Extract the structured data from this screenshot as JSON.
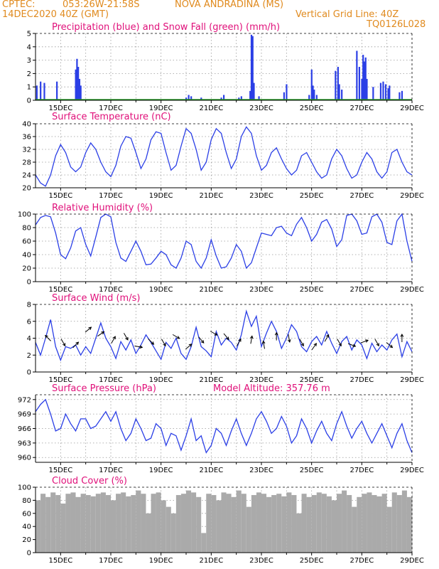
{
  "header": {
    "line1_left": "CPTEC:",
    "line1_coords": "053:26W-21:58S",
    "line1_city": "NOVA ANDRADINA (MS)",
    "line2_date": "14DEC2020 40Z (GMT)",
    "line2_grid": "Vertical Grid Line: 40Z",
    "line3_code": "TQ0126L028",
    "accent_orange": "#e08a1e",
    "accent_magenta": "#e0107a"
  },
  "x_axis": {
    "day_start": 14,
    "day_end": 29,
    "tick_labels": [
      "15DEC",
      "17DEC",
      "19DEC",
      "21DEC",
      "23DEC",
      "25DEC",
      "27DEC",
      "29DEC"
    ],
    "tick_days": [
      15,
      17,
      19,
      21,
      23,
      25,
      27,
      29
    ]
  },
  "chart_data": [
    {
      "type": "bar",
      "title": "Precipitation (blue) and Snow Fall (green) (mm/h)",
      "ylim": [
        0,
        5
      ],
      "yticks": [
        0,
        1,
        2,
        3,
        4,
        5
      ],
      "series": [
        {
          "name": "Precipitation",
          "color": "#2b3fe6",
          "x": [
            14.05,
            14.2,
            14.35,
            14.85,
            15.6,
            15.65,
            15.7,
            15.75,
            15.8,
            20.0,
            20.1,
            20.2,
            20.6,
            21.4,
            21.5,
            22.1,
            22.2,
            22.55,
            22.6,
            22.65,
            22.7,
            22.9,
            23.9,
            24.0,
            24.9,
            25.0,
            25.05,
            25.1,
            25.2,
            25.95,
            26.05,
            26.1,
            26.2,
            26.8,
            26.9,
            27.0,
            27.05,
            27.1,
            27.15,
            27.2,
            27.45,
            27.75,
            27.85,
            27.95,
            28.05,
            28.1,
            28.5,
            28.6
          ],
          "y": [
            1.1,
            1.4,
            1.3,
            1.4,
            2.3,
            3.1,
            2.5,
            1.6,
            1.1,
            0.2,
            0.4,
            0.3,
            0.2,
            0.2,
            0.4,
            0.2,
            0.3,
            0.7,
            4.9,
            4.8,
            1.3,
            0.3,
            0.6,
            1.2,
            0.4,
            2.3,
            1.1,
            0.8,
            0.4,
            2.2,
            2.5,
            1.2,
            0.8,
            3.7,
            2.5,
            1.6,
            3.4,
            2.9,
            3.2,
            1.6,
            1.0,
            1.3,
            1.4,
            1.2,
            0.9,
            1.1,
            0.6,
            0.7
          ]
        },
        {
          "name": "Snow Fall",
          "color": "#2a9d2a",
          "x": [
            14,
            29
          ],
          "y": [
            0,
            0
          ]
        }
      ]
    },
    {
      "type": "line",
      "title": "Surface Temperature (nC)",
      "ylim": [
        20,
        40
      ],
      "yticks": [
        20,
        24,
        28,
        32,
        36,
        40
      ],
      "series": [
        {
          "name": "Temperature",
          "color": "#2b3fe6",
          "x": [
            14,
            14.2,
            14.4,
            14.6,
            14.8,
            15.0,
            15.2,
            15.4,
            15.6,
            15.8,
            16.0,
            16.2,
            16.4,
            16.6,
            16.8,
            17.0,
            17.2,
            17.4,
            17.6,
            17.8,
            18.0,
            18.2,
            18.4,
            18.6,
            18.8,
            19.0,
            19.2,
            19.4,
            19.6,
            19.8,
            20.0,
            20.2,
            20.4,
            20.6,
            20.8,
            21.0,
            21.2,
            21.4,
            21.6,
            21.8,
            22.0,
            22.2,
            22.4,
            22.6,
            22.8,
            23.0,
            23.2,
            23.4,
            23.6,
            23.8,
            24.0,
            24.2,
            24.4,
            24.6,
            24.8,
            25.0,
            25.2,
            25.4,
            25.6,
            25.8,
            26.0,
            26.2,
            26.4,
            26.6,
            26.8,
            27.0,
            27.2,
            27.4,
            27.6,
            27.8,
            28.0,
            28.2,
            28.4,
            28.6,
            28.8,
            29.0
          ],
          "y": [
            24,
            21.5,
            20.5,
            24,
            30,
            33.5,
            31,
            26.5,
            25,
            26.5,
            31,
            34,
            32,
            28,
            25,
            23.5,
            27,
            33,
            36,
            35.5,
            31,
            26,
            29,
            35,
            37.5,
            37,
            31,
            25.5,
            27,
            33,
            38.5,
            37,
            32,
            25.5,
            28,
            35,
            38.5,
            37,
            31,
            26,
            29,
            36,
            39,
            37,
            30,
            25.5,
            27,
            31,
            32.5,
            29,
            26,
            24,
            25.5,
            30,
            31,
            28,
            25,
            23,
            24,
            29,
            32,
            30,
            26,
            23,
            24,
            28,
            31,
            29,
            25,
            23,
            25,
            31,
            32,
            28,
            25,
            24
          ]
        }
      ]
    },
    {
      "type": "line",
      "title": "Relative Humidity (%)",
      "ylim": [
        0,
        100
      ],
      "yticks": [
        0,
        20,
        40,
        60,
        80,
        100
      ],
      "series": [
        {
          "name": "Humidity",
          "color": "#2b3fe6",
          "x": [
            14,
            14.2,
            14.4,
            14.6,
            14.8,
            15.0,
            15.2,
            15.4,
            15.6,
            15.8,
            16.0,
            16.2,
            16.4,
            16.6,
            16.8,
            17.0,
            17.2,
            17.4,
            17.6,
            17.8,
            18.0,
            18.2,
            18.4,
            18.6,
            18.8,
            19.0,
            19.2,
            19.4,
            19.6,
            19.8,
            20.0,
            20.2,
            20.4,
            20.6,
            20.8,
            21.0,
            21.2,
            21.4,
            21.6,
            21.8,
            22.0,
            22.2,
            22.4,
            22.6,
            22.8,
            23.0,
            23.2,
            23.4,
            23.6,
            23.8,
            24.0,
            24.2,
            24.4,
            24.6,
            24.8,
            25.0,
            25.2,
            25.4,
            25.6,
            25.8,
            26.0,
            26.2,
            26.4,
            26.6,
            26.8,
            27.0,
            27.2,
            27.4,
            27.6,
            27.8,
            28.0,
            28.2,
            28.4,
            28.6,
            28.8,
            29.0
          ],
          "y": [
            84,
            95,
            98,
            96,
            72,
            40,
            34,
            50,
            75,
            80,
            55,
            38,
            66,
            95,
            100,
            96,
            58,
            35,
            30,
            45,
            60,
            45,
            25,
            26,
            35,
            45,
            40,
            25,
            20,
            35,
            60,
            55,
            30,
            20,
            35,
            62,
            38,
            20,
            22,
            35,
            55,
            45,
            20,
            28,
            50,
            72,
            70,
            68,
            80,
            82,
            72,
            68,
            85,
            95,
            80,
            60,
            70,
            88,
            92,
            78,
            52,
            62,
            98,
            100,
            90,
            70,
            72,
            96,
            100,
            88,
            58,
            55,
            90,
            100,
            60,
            30
          ]
        }
      ]
    },
    {
      "type": "line",
      "title": "Surface Wind (m/s)",
      "ylim": [
        0,
        8
      ],
      "yticks": [
        0,
        2,
        4,
        6,
        8
      ],
      "series": [
        {
          "name": "Wind speed",
          "color": "#2b3fe6",
          "x": [
            14,
            14.2,
            14.4,
            14.6,
            14.8,
            15.0,
            15.2,
            15.4,
            15.6,
            15.8,
            16.0,
            16.2,
            16.4,
            16.6,
            16.8,
            17.0,
            17.2,
            17.4,
            17.6,
            17.8,
            18.0,
            18.2,
            18.4,
            18.6,
            18.8,
            19.0,
            19.2,
            19.4,
            19.6,
            19.8,
            20.0,
            20.2,
            20.4,
            20.6,
            20.8,
            21.0,
            21.2,
            21.4,
            21.6,
            21.8,
            22.0,
            22.2,
            22.4,
            22.6,
            22.8,
            23.0,
            23.2,
            23.4,
            23.6,
            23.8,
            24.0,
            24.2,
            24.4,
            24.6,
            24.8,
            25.0,
            25.2,
            25.4,
            25.6,
            25.8,
            26.0,
            26.2,
            26.4,
            26.6,
            26.8,
            27.0,
            27.2,
            27.4,
            27.6,
            27.8,
            28.0,
            28.2,
            28.4,
            28.6,
            28.8,
            29.0
          ],
          "y": [
            3.5,
            2,
            4,
            6.2,
            3,
            1.4,
            3,
            2.8,
            3.2,
            2,
            3,
            2.2,
            4,
            5.8,
            4,
            3,
            1.6,
            3.6,
            2.6,
            3.8,
            2.2,
            3.2,
            4.4,
            3.5,
            2.5,
            1.5,
            3.5,
            2.8,
            4,
            2.2,
            1.5,
            3,
            5.3,
            3,
            2.5,
            1.8,
            4.8,
            3.2,
            4,
            3.5,
            2.6,
            4.4,
            7.2,
            5.4,
            6.6,
            3,
            4.6,
            6,
            4.8,
            2.8,
            4,
            5.6,
            4.8,
            3,
            2.4,
            3.6,
            4.2,
            3.2,
            4.8,
            3.4,
            2.2,
            3.6,
            4.2,
            2.6,
            3.8,
            3.2,
            1.6,
            3.4,
            2.4,
            3.2,
            2.6,
            3.8,
            4.5,
            1.8,
            3.6,
            2.4
          ]
        },
        {
          "name": "Wind direction",
          "color": "#000000",
          "x": [
            14.5,
            15.1,
            15.6,
            16.1,
            16.6,
            17.1,
            17.6,
            18.1,
            18.6,
            19.1,
            19.6,
            20.1,
            20.6,
            21.1,
            21.6,
            22.1,
            22.6,
            23.1,
            23.6,
            24.1,
            24.6,
            25.1,
            25.6,
            26.1,
            26.6,
            27.1,
            27.6,
            28.1,
            28.6
          ],
          "y": [
            4,
            3.5,
            3.2,
            5,
            4.5,
            3.8,
            4.2,
            3,
            3.6,
            3.5,
            4.2,
            3,
            3.8,
            4.6,
            4.2,
            3.5,
            3.8,
            3.2,
            4.2,
            4,
            3.5,
            3,
            4,
            3.5,
            3.2,
            3.6,
            3.5,
            3.2,
            4
          ],
          "bearing_deg": [
            135,
            300,
            45,
            40,
            35,
            60,
            300,
            350,
            315,
            300,
            330,
            40,
            310,
            330,
            310,
            60,
            80,
            100,
            90,
            280,
            300,
            55,
            60,
            300,
            340,
            20,
            300,
            320,
            90
          ]
        }
      ]
    },
    {
      "type": "line",
      "title": "Surface Pressure (hPa)",
      "annotation": "Model Altitude: 357.76 m",
      "ylim": [
        959,
        973
      ],
      "yticks": [
        960,
        963,
        966,
        969,
        972
      ],
      "series": [
        {
          "name": "Pressure",
          "color": "#2b3fe6",
          "x": [
            14,
            14.2,
            14.4,
            14.6,
            14.8,
            15.0,
            15.2,
            15.4,
            15.6,
            15.8,
            16.0,
            16.2,
            16.4,
            16.6,
            16.8,
            17.0,
            17.2,
            17.4,
            17.6,
            17.8,
            18.0,
            18.2,
            18.4,
            18.6,
            18.8,
            19.0,
            19.2,
            19.4,
            19.6,
            19.8,
            20.0,
            20.2,
            20.4,
            20.6,
            20.8,
            21.0,
            21.2,
            21.4,
            21.6,
            21.8,
            22.0,
            22.2,
            22.4,
            22.6,
            22.8,
            23.0,
            23.2,
            23.4,
            23.6,
            23.8,
            24.0,
            24.2,
            24.4,
            24.6,
            24.8,
            25.0,
            25.2,
            25.4,
            25.6,
            25.8,
            26.0,
            26.2,
            26.4,
            26.6,
            26.8,
            27.0,
            27.2,
            27.4,
            27.6,
            27.8,
            28.0,
            28.2,
            28.4,
            28.6,
            28.8,
            29.0
          ],
          "y": [
            969.5,
            971,
            972,
            969,
            965.5,
            966,
            969,
            967,
            965.5,
            968,
            968,
            966,
            966.5,
            968,
            969.5,
            967.5,
            969.5,
            966,
            963.5,
            965,
            968,
            966,
            963.5,
            964,
            967,
            966,
            962.5,
            965,
            964.5,
            961.5,
            964.5,
            968,
            963.5,
            964.5,
            961,
            962.5,
            966,
            965,
            962.5,
            965.5,
            968,
            965,
            962.5,
            965,
            968,
            969.5,
            967.5,
            965,
            966,
            968.5,
            966.5,
            963,
            964.5,
            968,
            966,
            963,
            965.5,
            967.5,
            965,
            963.5,
            967,
            969.5,
            966.5,
            964,
            966,
            967.5,
            965,
            963,
            965,
            967,
            964.5,
            962,
            965,
            967,
            963.5,
            961
          ]
        }
      ]
    },
    {
      "type": "bar",
      "title": "Cloud Cover (%)",
      "ylim": [
        0,
        100
      ],
      "yticks": [
        0,
        20,
        40,
        60,
        80,
        100
      ],
      "series": [
        {
          "name": "Cloud cover",
          "color": "#aaaaaa",
          "x": [
            14,
            14.2,
            14.4,
            14.6,
            14.8,
            15.0,
            15.2,
            15.4,
            15.6,
            15.8,
            16.0,
            16.2,
            16.4,
            16.6,
            16.8,
            17.0,
            17.2,
            17.4,
            17.6,
            17.8,
            18.0,
            18.2,
            18.4,
            18.6,
            18.8,
            19.0,
            19.2,
            19.4,
            19.6,
            19.8,
            20.0,
            20.2,
            20.4,
            20.6,
            20.8,
            21.0,
            21.2,
            21.4,
            21.6,
            21.8,
            22.0,
            22.2,
            22.4,
            22.6,
            22.8,
            23.0,
            23.2,
            23.4,
            23.6,
            23.8,
            24.0,
            24.2,
            24.4,
            24.6,
            24.8,
            25.0,
            25.2,
            25.4,
            25.6,
            25.8,
            26.0,
            26.2,
            26.4,
            26.6,
            26.8,
            27.0,
            27.2,
            27.4,
            27.6,
            27.8,
            28.0,
            28.2,
            28.4,
            28.6,
            28.8,
            29.0
          ],
          "y": [
            80,
            90,
            85,
            92,
            88,
            75,
            90,
            92,
            85,
            90,
            88,
            86,
            90,
            92,
            88,
            80,
            90,
            92,
            86,
            88,
            95,
            90,
            60,
            90,
            92,
            80,
            70,
            60,
            88,
            90,
            95,
            92,
            85,
            30,
            90,
            88,
            80,
            92,
            90,
            85,
            95,
            90,
            70,
            88,
            92,
            90,
            85,
            88,
            90,
            86,
            92,
            88,
            60,
            90,
            85,
            88,
            92,
            90,
            86,
            80,
            90,
            95,
            88,
            70,
            85,
            90,
            92,
            88,
            86,
            90,
            70,
            92,
            88,
            95,
            85,
            90
          ]
        }
      ]
    }
  ]
}
